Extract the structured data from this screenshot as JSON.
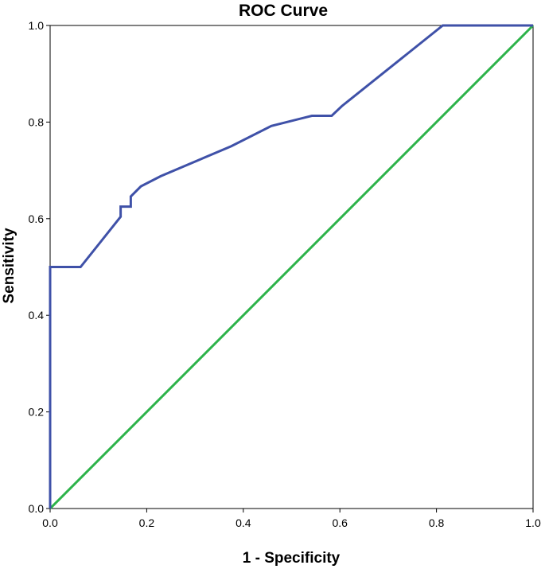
{
  "chart_data": {
    "type": "line",
    "title": "ROC Curve",
    "xlabel": "1 - Specificity",
    "ylabel": "Sensitivity",
    "xlim": [
      0,
      1
    ],
    "ylim": [
      0,
      1
    ],
    "x_ticks": [
      "0.0",
      "0.2",
      "0.4",
      "0.6",
      "0.8",
      "1.0"
    ],
    "y_ticks": [
      "0.0",
      "0.2",
      "0.4",
      "0.6",
      "0.8",
      "1.0"
    ],
    "grid": false,
    "series": [
      {
        "color": "#3f51a8",
        "x": [
          0.0,
          0.0,
          0.063,
          0.146,
          0.146,
          0.167,
          0.167,
          0.188,
          0.229,
          0.375,
          0.458,
          0.542,
          0.583,
          0.604,
          0.813,
          1.0
        ],
        "y": [
          0.0,
          0.5,
          0.5,
          0.604,
          0.625,
          0.625,
          0.646,
          0.667,
          0.688,
          0.75,
          0.792,
          0.813,
          0.813,
          0.833,
          1.0,
          1.0
        ]
      },
      {
        "color": "#2db34a",
        "x": [
          0.0,
          1.0
        ],
        "y": [
          0.0,
          1.0
        ]
      }
    ]
  }
}
